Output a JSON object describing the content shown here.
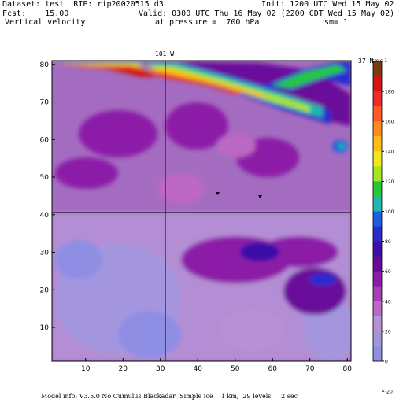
{
  "header": {
    "dataset_label": "Dataset:",
    "dataset_value": "test",
    "rip_label": "RIP:",
    "rip_value": "rip20020515 d3",
    "init_text": "Init: 1200 UTC Wed 15 May 02",
    "fcst_label": "Fcst:",
    "fcst_value": "15.00",
    "valid_text": "Valid: 0300 UTC Thu 16 May 02 (2200 CDT Wed 15 May 02)",
    "field_name": "Vertical velocity",
    "pressure_text": "at pressure =  700 hPa",
    "sm_text": "sm= 1"
  },
  "map": {
    "meridian_label": "101 W",
    "parallel_label": "37 N",
    "x_ticks": [
      "10",
      "20",
      "30",
      "40",
      "50",
      "60",
      "70",
      "80"
    ],
    "y_ticks": [
      "10",
      "20",
      "30",
      "40",
      "50",
      "60",
      "70",
      "80"
    ],
    "x_range": [
      1,
      81
    ],
    "y_range": [
      1,
      81
    ]
  },
  "colorbar": {
    "units": "cm s-1",
    "labels": [
      "180",
      "160",
      "140",
      "120",
      "100",
      "80",
      "60",
      "40",
      "20",
      "0",
      "-20"
    ],
    "colors": [
      "#7a3b10",
      "#d41414",
      "#ee2a2a",
      "#ff5a28",
      "#ff8a1e",
      "#ffbb16",
      "#f0e81e",
      "#a6e620",
      "#26c83a",
      "#1eb8b0",
      "#1e5ce0",
      "#2a2ad0",
      "#3a10a8",
      "#6a0a9a",
      "#8c1ca8",
      "#a640b4",
      "#bc68c4",
      "#b890d6",
      "#a496de",
      "#8e8ee4"
    ]
  },
  "footer": {
    "text": "Model info: V3.5.0 No Cumulus Blackadar  Simple ice    1 km,  29 levels,    2 sec"
  }
}
